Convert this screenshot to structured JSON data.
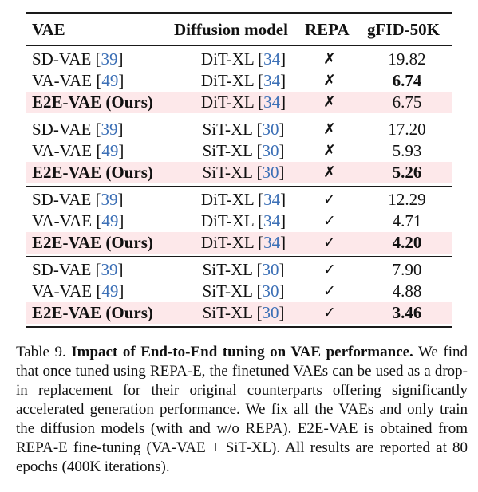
{
  "table": {
    "headers": {
      "vae": "VAE",
      "diffusion": "Diffusion model",
      "repa": "REPA",
      "fid": "gFID-50K"
    },
    "groups": [
      {
        "rows": [
          {
            "vae": "SD-VAE",
            "vae_cite": "39",
            "diff": "DiT-XL",
            "diff_cite": "34",
            "repa": "✗",
            "fid": "19.82",
            "fid_bold": false,
            "highlight": false
          },
          {
            "vae": "VA-VAE",
            "vae_cite": "49",
            "diff": "DiT-XL",
            "diff_cite": "34",
            "repa": "✗",
            "fid": "6.74",
            "fid_bold": true,
            "highlight": false
          },
          {
            "vae": "E2E-VAE (Ours)",
            "vae_cite": "",
            "diff": "DiT-XL",
            "diff_cite": "34",
            "repa": "✗",
            "fid": "6.75",
            "fid_bold": false,
            "highlight": true
          }
        ]
      },
      {
        "rows": [
          {
            "vae": "SD-VAE",
            "vae_cite": "39",
            "diff": "SiT-XL",
            "diff_cite": "30",
            "repa": "✗",
            "fid": "17.20",
            "fid_bold": false,
            "highlight": false
          },
          {
            "vae": "VA-VAE",
            "vae_cite": "49",
            "diff": "SiT-XL",
            "diff_cite": "30",
            "repa": "✗",
            "fid": "5.93",
            "fid_bold": false,
            "highlight": false
          },
          {
            "vae": "E2E-VAE (Ours)",
            "vae_cite": "",
            "diff": "SiT-XL",
            "diff_cite": "30",
            "repa": "✗",
            "fid": "5.26",
            "fid_bold": true,
            "highlight": true
          }
        ]
      },
      {
        "rows": [
          {
            "vae": "SD-VAE",
            "vae_cite": "39",
            "diff": "DiT-XL",
            "diff_cite": "34",
            "repa": "✓",
            "fid": "12.29",
            "fid_bold": false,
            "highlight": false
          },
          {
            "vae": "VA-VAE",
            "vae_cite": "49",
            "diff": "DiT-XL",
            "diff_cite": "34",
            "repa": "✓",
            "fid": "4.71",
            "fid_bold": false,
            "highlight": false
          },
          {
            "vae": "E2E-VAE (Ours)",
            "vae_cite": "",
            "diff": "DiT-XL",
            "diff_cite": "34",
            "repa": "✓",
            "fid": "4.20",
            "fid_bold": true,
            "highlight": true
          }
        ]
      },
      {
        "rows": [
          {
            "vae": "SD-VAE",
            "vae_cite": "39",
            "diff": "SiT-XL",
            "diff_cite": "30",
            "repa": "✓",
            "fid": "7.90",
            "fid_bold": false,
            "highlight": false
          },
          {
            "vae": "VA-VAE",
            "vae_cite": "49",
            "diff": "SiT-XL",
            "diff_cite": "30",
            "repa": "✓",
            "fid": "4.88",
            "fid_bold": false,
            "highlight": false
          },
          {
            "vae": "E2E-VAE (Ours)",
            "vae_cite": "",
            "diff": "SiT-XL",
            "diff_cite": "30",
            "repa": "✓",
            "fid": "3.46",
            "fid_bold": true,
            "highlight": true
          }
        ]
      }
    ]
  },
  "caption": {
    "label": "Table 9.",
    "title": "Impact of End-to-End tuning on VAE performance.",
    "body": "We find that once tuned using REPA-E, the finetuned VAEs can be used as a drop-in replacement for their original counterparts offering significantly accelerated generation performance. We fix all the VAEs and only train the diffusion models (with and w/o REPA). E2E-VAE is obtained from REPA-E fine-tuning (VA-VAE + SiT-XL). All results are reported at 80 epochs (400K iterations)."
  }
}
